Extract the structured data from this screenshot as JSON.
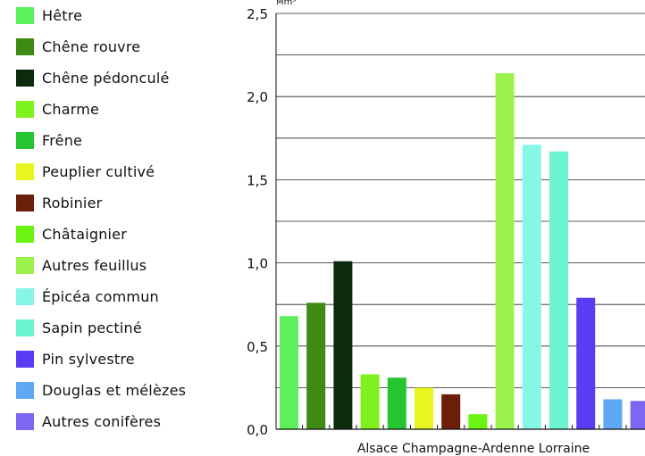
{
  "chart_data": {
    "type": "bar",
    "unit": "Mm³",
    "ylim": [
      0,
      2.5
    ],
    "yticks": [
      "0,0",
      "0,5",
      "1,0",
      "1,5",
      "2,0",
      "2,5"
    ],
    "grid": true,
    "legend_position": "left",
    "categories_label": "Alsace Champagne-Ardenne Lorraine",
    "series": [
      {
        "name": "Hêtre",
        "color": "#5CF05C"
      },
      {
        "name": "Chêne rouvre",
        "color": "#3F8A14"
      },
      {
        "name": "Chêne pédonculé",
        "color": "#0C2A0C"
      },
      {
        "name": "Charme",
        "color": "#7DF21D"
      },
      {
        "name": "Frêne",
        "color": "#24C52E"
      },
      {
        "name": "Peuplier cultivé",
        "color": "#E9F51E"
      },
      {
        "name": "Robinier",
        "color": "#6B1E0A"
      },
      {
        "name": "Châtaignier",
        "color": "#6BF311"
      },
      {
        "name": "Autres feuillus",
        "color": "#9BF24A"
      },
      {
        "name": "Épicéa commun",
        "color": "#86F7E6"
      },
      {
        "name": "Sapin pectiné",
        "color": "#6BF2CF"
      },
      {
        "name": "Pin sylvestre",
        "color": "#5A3CF2"
      },
      {
        "name": "Douglas et mélèzes",
        "color": "#5EA8F6"
      },
      {
        "name": "Autres conifères",
        "color": "#7C66F2"
      }
    ],
    "values": [
      0.68,
      0.76,
      1.01,
      0.33,
      0.31,
      0.25,
      0.21,
      0.09,
      2.14,
      1.71,
      1.67,
      0.79,
      0.18,
      0.17
    ]
  }
}
